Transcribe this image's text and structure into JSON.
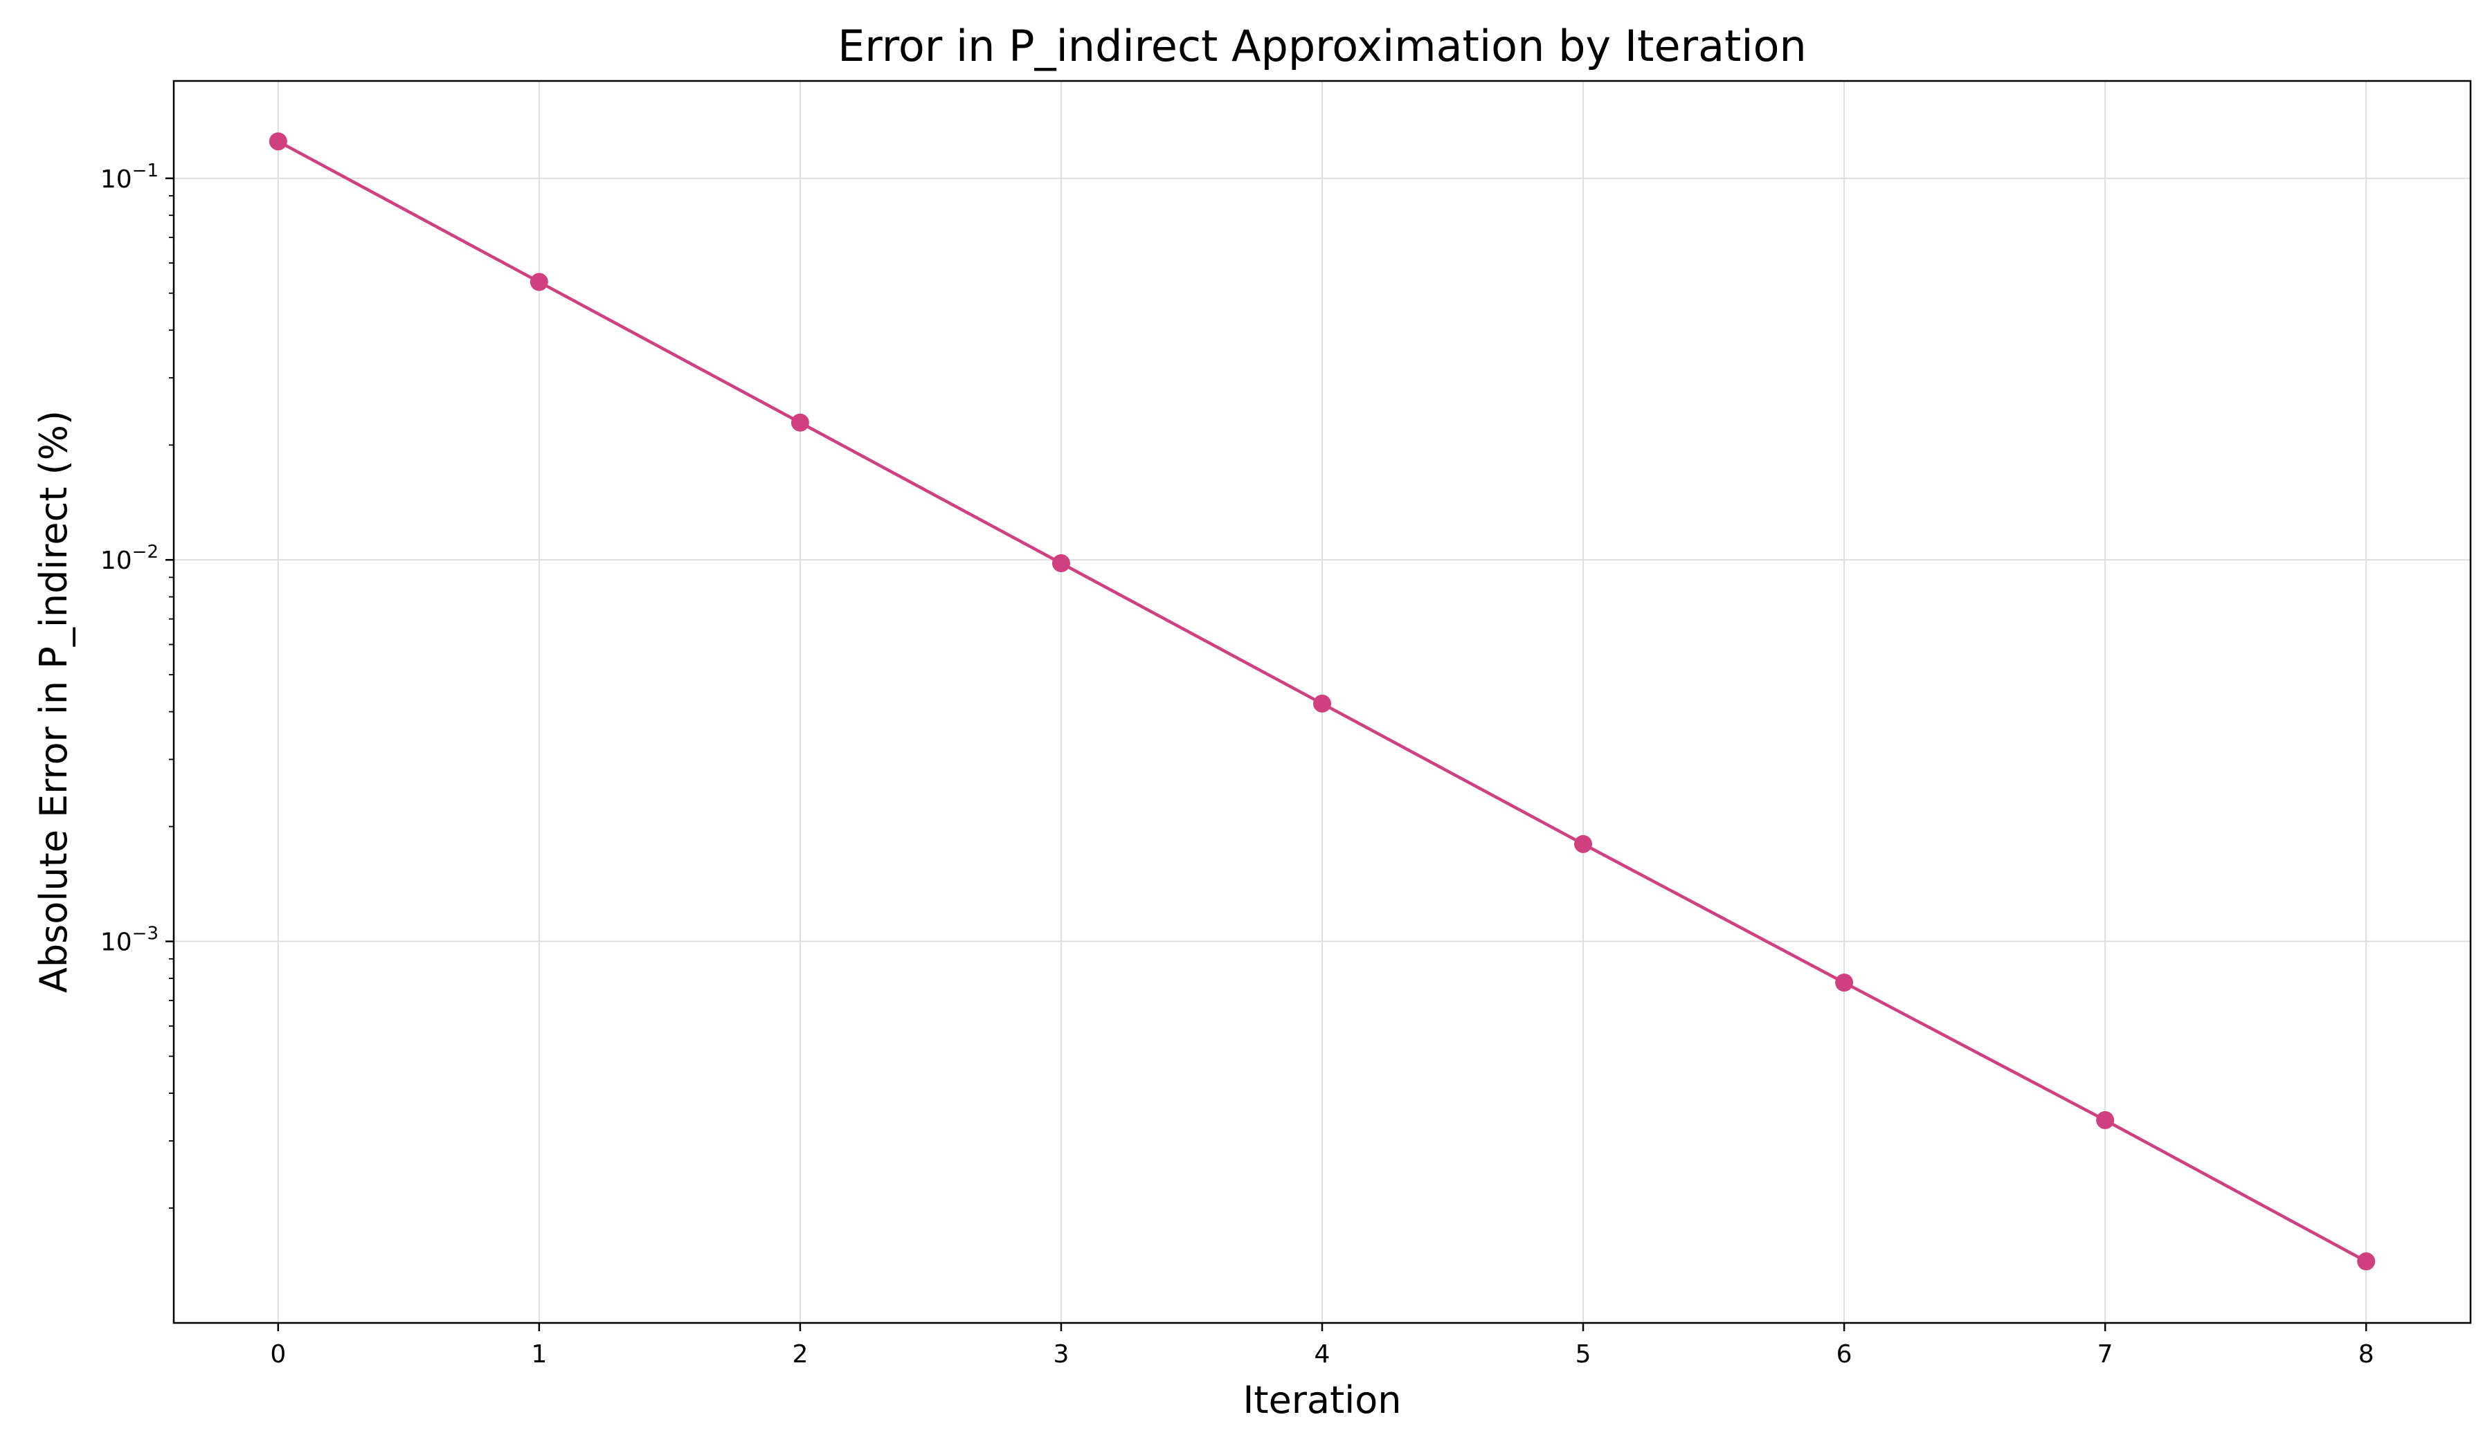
{
  "chart_data": {
    "type": "line",
    "title": "Error in P_indirect Approximation by Iteration",
    "xlabel": "Iteration",
    "ylabel": "Absolute Error in P_indirect (%)",
    "x": [
      0,
      1,
      2,
      3,
      4,
      5,
      6,
      7,
      8
    ],
    "series": [
      {
        "values": [
          0.125,
          0.0535,
          0.0229,
          0.0098,
          0.0042,
          0.0018,
          0.00078,
          0.00034,
          0.000145
        ],
        "color": "#d0407f",
        "marker": "circle"
      }
    ],
    "y_scale": "log",
    "xlim": [
      -0.4,
      8.4
    ],
    "ylim": [
      0.0001,
      0.18
    ],
    "x_ticks": [
      "0",
      "1",
      "2",
      "3",
      "4",
      "5",
      "6",
      "7",
      "8"
    ],
    "y_ticks": [
      {
        "value": 0.1,
        "base": "10",
        "exp": "−1"
      },
      {
        "value": 0.01,
        "base": "10",
        "exp": "−2"
      },
      {
        "value": 0.001,
        "base": "10",
        "exp": "−3"
      }
    ],
    "grid": true
  }
}
